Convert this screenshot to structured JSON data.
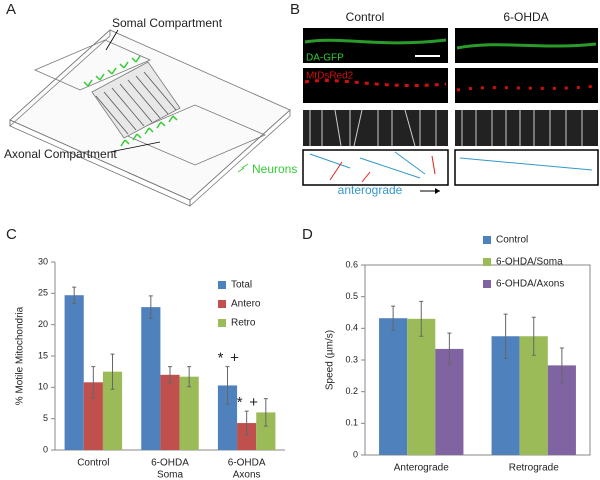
{
  "panel_a": {
    "label": "A",
    "somal": "Somal Compartment",
    "axonal": "Axonal Compartment",
    "neurons": "Neurons"
  },
  "panel_b": {
    "label": "B",
    "control": "Control",
    "treated": "6-OHDA",
    "gfp": "DA-GFP",
    "mito": "MtDsRed2",
    "direction": "anterograde"
  },
  "chart_data": [
    {
      "type": "bar",
      "panel": "C",
      "ylabel": "% Motile Mitochondria",
      "categories": [
        [
          "Control"
        ],
        [
          "6-OHDA",
          "Soma"
        ],
        [
          "6-OHDA",
          "Axons"
        ]
      ],
      "series": [
        {
          "name": "Total",
          "color": "#4f81bd",
          "values": [
            24.7,
            22.8,
            10.3
          ],
          "errors": [
            1.3,
            1.8,
            3.0
          ],
          "annotations": [
            null,
            null,
            [
              "*",
              "+"
            ]
          ]
        },
        {
          "name": "Antero",
          "color": "#c0504d",
          "values": [
            10.8,
            12.0,
            4.3
          ],
          "errors": [
            2.5,
            1.3,
            1.9
          ],
          "annotations": [
            null,
            null,
            [
              "*",
              "+"
            ]
          ]
        },
        {
          "name": "Retro",
          "color": "#9bbb59",
          "values": [
            12.5,
            11.7,
            6.0
          ],
          "errors": [
            2.8,
            1.6,
            2.2
          ]
        }
      ],
      "ylim": [
        0,
        30
      ],
      "yticks": [
        0,
        5,
        10,
        15,
        20,
        25,
        30
      ],
      "grid": false
    },
    {
      "type": "bar",
      "panel": "D",
      "ylabel": "Speed (µm/s)",
      "categories": [
        [
          "Anterograde"
        ],
        [
          "Retrograde"
        ]
      ],
      "series": [
        {
          "name": "Control",
          "color": "#4f81bd",
          "values": [
            0.432,
            0.375
          ],
          "errors": [
            0.038,
            0.07
          ]
        },
        {
          "name": "6-OHDA/Soma",
          "color": "#9bbb59",
          "values": [
            0.43,
            0.375
          ],
          "errors": [
            0.055,
            0.06
          ]
        },
        {
          "name": "6-OHDA/Axons",
          "color": "#8064a2",
          "values": [
            0.335,
            0.283
          ],
          "errors": [
            0.05,
            0.055
          ]
        }
      ],
      "ylim": [
        0,
        0.6
      ],
      "yticks": [
        0,
        0.1,
        0.2,
        0.3,
        0.4,
        0.5,
        0.6
      ],
      "grid": false
    }
  ]
}
